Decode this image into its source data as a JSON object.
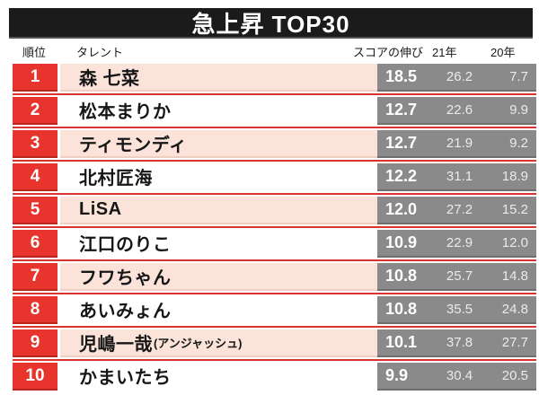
{
  "title": "急上昇 TOP30",
  "columns": {
    "rank": "順位",
    "talent": "タレント",
    "growth": "スコアの伸び",
    "y21": "21年",
    "y20": "20年"
  },
  "colors": {
    "title_black": "#1b1b1b",
    "accent_red": "#e7342c",
    "divider_red": "#d9352e",
    "row_pink": "#fbe3d9",
    "score_gray": "#8a8a8a"
  },
  "table": {
    "rows": [
      {
        "rank": "1",
        "name": "森 七菜",
        "note": "",
        "growth": "18.5",
        "y21": "26.2",
        "y20": "7.7"
      },
      {
        "rank": "2",
        "name": "松本まりか",
        "note": "",
        "growth": "12.7",
        "y21": "22.6",
        "y20": "9.9"
      },
      {
        "rank": "3",
        "name": "ティモンディ",
        "note": "",
        "growth": "12.7",
        "y21": "21.9",
        "y20": "9.2"
      },
      {
        "rank": "4",
        "name": "北村匠海",
        "note": "",
        "growth": "12.2",
        "y21": "31.1",
        "y20": "18.9"
      },
      {
        "rank": "5",
        "name": "LiSA",
        "note": "",
        "growth": "12.0",
        "y21": "27.2",
        "y20": "15.2"
      },
      {
        "rank": "6",
        "name": "江口のりこ",
        "note": "",
        "growth": "10.9",
        "y21": "22.9",
        "y20": "12.0"
      },
      {
        "rank": "7",
        "name": "フワちゃん",
        "note": "",
        "growth": "10.8",
        "y21": "25.7",
        "y20": "14.8"
      },
      {
        "rank": "8",
        "name": "あいみょん",
        "note": "",
        "growth": "10.8",
        "y21": "35.5",
        "y20": "24.8"
      },
      {
        "rank": "9",
        "name": "児嶋一哉",
        "note": "(アンジャッシュ)",
        "growth": "10.1",
        "y21": "37.8",
        "y20": "27.7"
      },
      {
        "rank": "10",
        "name": "かまいたち",
        "note": "",
        "growth": "9.9",
        "y21": "30.4",
        "y20": "20.5"
      }
    ]
  },
  "chart_data": {
    "type": "table",
    "title": "急上昇 TOP30",
    "columns": [
      "順位",
      "タレント",
      "スコアの伸び",
      "21年",
      "20年"
    ],
    "rows": [
      [
        1,
        "森 七菜",
        18.5,
        26.2,
        7.7
      ],
      [
        2,
        "松本まりか",
        12.7,
        22.6,
        9.9
      ],
      [
        3,
        "ティモンディ",
        12.7,
        21.9,
        9.2
      ],
      [
        4,
        "北村匠海",
        12.2,
        31.1,
        18.9
      ],
      [
        5,
        "LiSA",
        12.0,
        27.2,
        15.2
      ],
      [
        6,
        "江口のりこ",
        10.9,
        22.9,
        12.0
      ],
      [
        7,
        "フワちゃん",
        10.8,
        25.7,
        14.8
      ],
      [
        8,
        "あいみょん",
        10.8,
        35.5,
        24.8
      ],
      [
        9,
        "児嶋一哉(アンジャッシュ)",
        10.1,
        37.8,
        27.7
      ],
      [
        10,
        "かまいたち",
        9.9,
        30.4,
        20.5
      ]
    ]
  }
}
